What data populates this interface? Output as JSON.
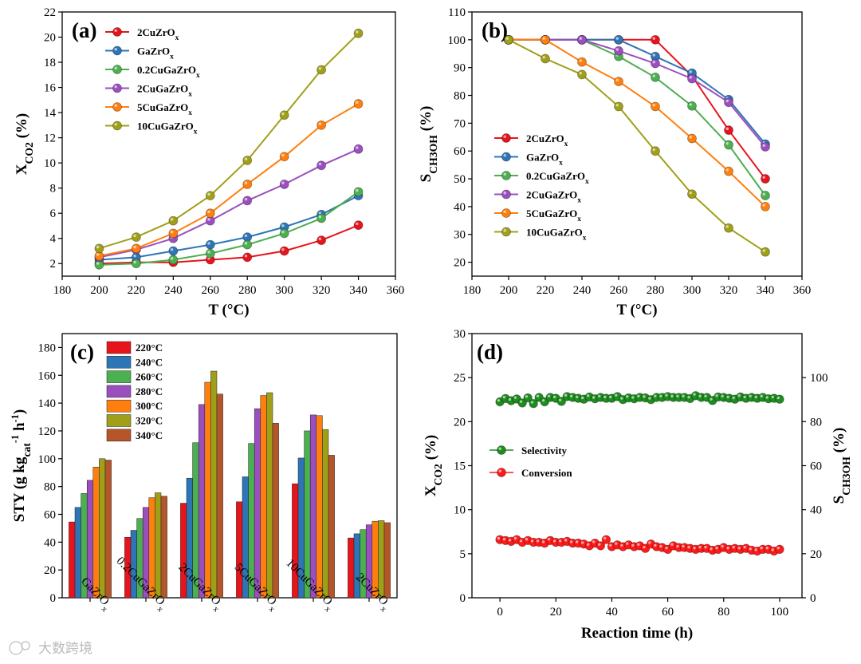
{
  "watermark": "大数跨境",
  "colors": {
    "red": "#e8141c",
    "blue": "#2e75b6",
    "green": "#4caf50",
    "purple": "#9b4fbf",
    "orange": "#ff7f0e",
    "olive": "#a0a018",
    "brown": "#b5562a",
    "dgreen": "#1e8c1e",
    "bred": "#ff1a1a"
  },
  "chart_data": [
    {
      "panel": "(a)",
      "type": "line",
      "xlabel": "T (°C)",
      "ylabel_main": "X",
      "ylabel_sub": "CO2",
      "ylabel_tail": " (%)",
      "xlim": [
        180,
        360
      ],
      "ylim": [
        1,
        22
      ],
      "xticks": [
        180,
        200,
        220,
        240,
        260,
        280,
        300,
        320,
        340,
        360
      ],
      "yticks": [
        2,
        4,
        6,
        8,
        10,
        12,
        14,
        16,
        18,
        20,
        22
      ],
      "x": [
        200,
        220,
        240,
        260,
        280,
        300,
        320,
        340
      ],
      "legend_position": "top-left",
      "series": [
        {
          "name": "2CuZrOx",
          "label_main": "2CuZrO",
          "label_sub": "x",
          "color": "red",
          "values": [
            2.0,
            2.1,
            2.1,
            2.3,
            2.5,
            3.0,
            3.85,
            5.05
          ]
        },
        {
          "name": "GaZrOx",
          "label_main": "GaZrO",
          "label_sub": "x",
          "color": "blue",
          "values": [
            2.3,
            2.5,
            3.0,
            3.5,
            4.1,
            4.9,
            5.9,
            7.4
          ]
        },
        {
          "name": "0.2CuGaZrOx",
          "label_main": "0.2CuGaZrO",
          "label_sub": "x",
          "color": "green",
          "values": [
            1.9,
            2.0,
            2.3,
            2.8,
            3.5,
            4.4,
            5.6,
            7.7
          ]
        },
        {
          "name": "2CuGaZrOx",
          "label_main": "2CuGaZrO",
          "label_sub": "x",
          "color": "purple",
          "values": [
            2.5,
            3.1,
            4.0,
            5.4,
            7.0,
            8.3,
            9.8,
            11.1
          ]
        },
        {
          "name": "5CuGaZrOx",
          "label_main": "5CuGaZrO",
          "label_sub": "x",
          "color": "orange",
          "values": [
            2.6,
            3.2,
            4.4,
            6.0,
            8.3,
            10.5,
            13.0,
            14.7
          ]
        },
        {
          "name": "10CuGaZrOx",
          "label_main": "10CuGaZrO",
          "label_sub": "x",
          "color": "olive",
          "values": [
            3.2,
            4.1,
            5.4,
            7.4,
            10.2,
            13.8,
            17.4,
            20.3
          ]
        }
      ]
    },
    {
      "panel": "(b)",
      "type": "line",
      "xlabel": "T (°C)",
      "ylabel_main": "S",
      "ylabel_sub": "CH3OH",
      "ylabel_tail": " (%)",
      "xlim": [
        180,
        360
      ],
      "ylim": [
        15,
        110
      ],
      "xticks": [
        180,
        200,
        220,
        240,
        260,
        280,
        300,
        320,
        340,
        360
      ],
      "yticks": [
        20,
        30,
        40,
        50,
        60,
        70,
        80,
        90,
        100,
        110
      ],
      "x": [
        200,
        220,
        240,
        260,
        280,
        300,
        320,
        340
      ],
      "legend_position": "center-left",
      "series": [
        {
          "name": "2CuZrOx",
          "label_main": "2CuZrO",
          "label_sub": "x",
          "color": "red",
          "values": [
            100,
            100,
            100,
            100,
            100,
            87,
            67.5,
            50
          ]
        },
        {
          "name": "GaZrOx",
          "label_main": "GaZrO",
          "label_sub": "x",
          "color": "blue",
          "values": [
            100,
            100,
            100,
            100,
            94,
            88,
            78.5,
            62.5
          ]
        },
        {
          "name": "0.2CuGaZrOx",
          "label_main": "0.2CuGaZrO",
          "label_sub": "x",
          "color": "green",
          "values": [
            100,
            100,
            100,
            94,
            86.5,
            76.2,
            62.2,
            44
          ]
        },
        {
          "name": "2CuGaZrOx",
          "label_main": "2CuGaZrO",
          "label_sub": "x",
          "color": "purple",
          "values": [
            100,
            100,
            100,
            96,
            91.5,
            86,
            77.5,
            61.5
          ]
        },
        {
          "name": "5CuGaZrOx",
          "label_main": "5CuGaZrO",
          "label_sub": "x",
          "color": "orange",
          "values": [
            100,
            100,
            92,
            85,
            76,
            64.5,
            52.7,
            40
          ]
        },
        {
          "name": "10CuGaZrOx",
          "label_main": "10CuGaZrO",
          "label_sub": "x",
          "color": "olive",
          "values": [
            100,
            93.2,
            87.5,
            76,
            60,
            44.5,
            32.3,
            23.7
          ]
        }
      ]
    },
    {
      "panel": "(c)",
      "type": "bar",
      "ylabel_main": "STY (g kg",
      "ylabel_sub": "cat",
      "ylabel_sup1": "-1",
      "ylabel_mid": " h",
      "ylabel_sup2": "-1",
      "ylabel_tail": ")",
      "ylim": [
        0,
        190
      ],
      "yticks": [
        0,
        20,
        40,
        60,
        80,
        100,
        120,
        140,
        160,
        180
      ],
      "legend_position": "top-left",
      "categories": [
        {
          "main": "GaZrO",
          "sub": "x"
        },
        {
          "main": "0.2CuGaZrO",
          "sub": "x"
        },
        {
          "main": "2CuGaZrO",
          "sub": "x"
        },
        {
          "main": "5CuGaZrO",
          "sub": "x"
        },
        {
          "main": "10CuGaZrO",
          "sub": "x"
        },
        {
          "main": "2CuZrO",
          "sub": "x"
        }
      ],
      "series": [
        {
          "name": "220°C",
          "color": "red",
          "values": [
            54.5,
            43.5,
            68,
            69,
            82,
            43
          ]
        },
        {
          "name": "240°C",
          "color": "blue",
          "values": [
            65,
            48.5,
            86,
            87,
            100.5,
            46
          ]
        },
        {
          "name": "260°C",
          "color": "green",
          "values": [
            75,
            57,
            111.5,
            111,
            120,
            49
          ]
        },
        {
          "name": "280°C",
          "color": "purple",
          "values": [
            84.5,
            65,
            139,
            136,
            131.5,
            52.5
          ]
        },
        {
          "name": "300°C",
          "color": "orange",
          "values": [
            94,
            72,
            155,
            145.5,
            131,
            55
          ]
        },
        {
          "name": "320°C",
          "color": "olive",
          "values": [
            100,
            75.5,
            163,
            147.5,
            121,
            55.5
          ]
        },
        {
          "name": "340°C",
          "color": "brown",
          "values": [
            99,
            73,
            146.5,
            125.5,
            102.5,
            54
          ]
        }
      ]
    },
    {
      "panel": "(d)",
      "type": "scatter",
      "xlabel": "Reaction time (h)",
      "ylabel_left_main": "X",
      "ylabel_left_sub": "CO2",
      "ylabel_left_tail": " (%)",
      "ylabel_right_main": "S",
      "ylabel_right_sub": "CH3OH",
      "ylabel_right_tail": " (%)",
      "xlim": [
        -10,
        108
      ],
      "ylim_left": [
        0,
        30
      ],
      "ylim_right": [
        0,
        120
      ],
      "xticks": [
        0,
        20,
        40,
        60,
        80,
        100
      ],
      "yticks_left": [
        0,
        5,
        10,
        15,
        20,
        25,
        30
      ],
      "yticks_right": [
        0,
        20,
        40,
        60,
        80,
        100
      ],
      "legend_position": "center-left",
      "series": [
        {
          "name": "Selectivity",
          "axis": "right",
          "color": "dgreen",
          "x": [
            0,
            2,
            4,
            6,
            8,
            10,
            12,
            14,
            16,
            18,
            20,
            22,
            24,
            26,
            28,
            30,
            32,
            34,
            36,
            38,
            40,
            42,
            44,
            46,
            48,
            50,
            52,
            54,
            56,
            58,
            60,
            62,
            64,
            66,
            68,
            70,
            72,
            74,
            76,
            78,
            80,
            82,
            84,
            86,
            88,
            90,
            92,
            94,
            96,
            98,
            100
          ],
          "values": [
            89,
            90.5,
            89.5,
            90.3,
            88.5,
            90.8,
            88.2,
            91,
            89,
            91,
            90.6,
            89.2,
            91.4,
            91,
            90.6,
            90.2,
            91.2,
            90.4,
            91,
            90.6,
            90.6,
            91.4,
            90,
            90.8,
            90.4,
            91,
            90.8,
            90,
            91,
            91,
            91.4,
            91,
            91,
            91,
            90.5,
            91.8,
            91,
            91,
            89.6,
            91.2,
            91,
            90.6,
            90.2,
            91.2,
            90.6,
            91,
            90.6,
            91,
            90.4,
            90.6,
            90.2
          ]
        },
        {
          "name": "Conversion",
          "axis": "left",
          "color": "bred",
          "x": [
            0,
            2,
            4,
            6,
            8,
            10,
            12,
            14,
            16,
            18,
            20,
            22,
            24,
            26,
            28,
            30,
            32,
            34,
            36,
            38,
            40,
            42,
            44,
            46,
            48,
            50,
            52,
            54,
            56,
            58,
            60,
            62,
            64,
            66,
            68,
            70,
            72,
            74,
            76,
            78,
            80,
            82,
            84,
            86,
            88,
            90,
            92,
            94,
            96,
            98,
            100
          ],
          "values": [
            6.6,
            6.5,
            6.4,
            6.6,
            6.3,
            6.5,
            6.3,
            6.3,
            6.2,
            6.5,
            6.3,
            6.3,
            6.4,
            6.2,
            6.2,
            6.1,
            5.9,
            6.2,
            5.9,
            6.6,
            5.8,
            6.0,
            5.8,
            6.0,
            5.8,
            5.9,
            5.6,
            6.1,
            5.8,
            5.7,
            5.5,
            5.9,
            5.7,
            5.7,
            5.6,
            5.5,
            5.6,
            5.6,
            5.4,
            5.5,
            5.7,
            5.5,
            5.6,
            5.5,
            5.6,
            5.4,
            5.3,
            5.5,
            5.5,
            5.3,
            5.5
          ]
        }
      ]
    }
  ]
}
